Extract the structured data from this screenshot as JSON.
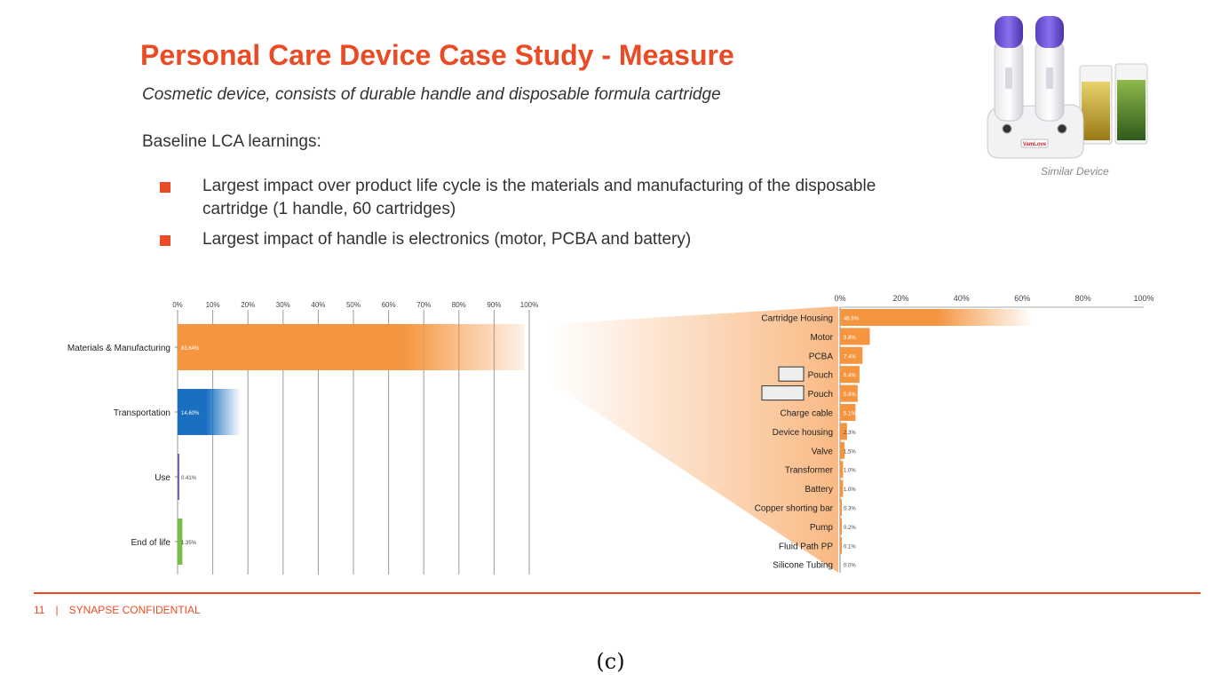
{
  "slide": {
    "title": "Personal Care Device Case Study - Measure",
    "subtitle": "Cosmetic device, consists of durable handle and disposable formula cartridge",
    "intro": "Baseline LCA learnings:",
    "bullets": [
      "Largest impact over product life cycle is the materials and manufacturing of the disposable cartridge (1 handle, 60 cartridges)",
      "Largest impact of handle is electronics (motor, PCBA and battery)"
    ],
    "image_caption": "Similar Device",
    "product_brand": "VamLove",
    "accent_color": "#ea4b24"
  },
  "chart_data": [
    {
      "type": "bar",
      "orientation": "horizontal",
      "categories": [
        "Materials & Manufacturing",
        "Transportation",
        "Use",
        "End of life"
      ],
      "values": [
        83.64,
        14.6,
        0.41,
        1.35
      ],
      "data_labels": [
        "83.64%",
        "14.60%",
        "0.41%",
        "1.35%"
      ],
      "colors": [
        "#f5953f",
        "#1a6fc0",
        "#6d68b5",
        "#76c043"
      ],
      "xlim": [
        0,
        100
      ],
      "x_ticks": [
        "0%",
        "10%",
        "20%",
        "30%",
        "40%",
        "50%",
        "60%",
        "70%",
        "80%",
        "90%",
        "100%"
      ],
      "grid": true
    },
    {
      "type": "bar",
      "orientation": "horizontal",
      "categories": [
        "Cartridge Housing",
        "Motor",
        "PCBA",
        "Pouch",
        "Pouch",
        "Charge cable",
        "Device housing",
        "Valve",
        "Transformer",
        "Battery",
        "Copper shorting bar",
        "Pump",
        "Fluid Path PP",
        "Silicone Tubing"
      ],
      "values": [
        48.5,
        9.8,
        7.4,
        6.4,
        5.8,
        5.1,
        2.3,
        1.5,
        1.0,
        1.0,
        0.3,
        0.2,
        0.1,
        0.0
      ],
      "data_labels": [
        "48.5%",
        "9.8%",
        "7.4%",
        "6.4%",
        "5.8%",
        "5.1%",
        "2.3%",
        "1.5%",
        "1.0%",
        "1.0%",
        "0.3%",
        "0.2%",
        "0.1%",
        "0.0%"
      ],
      "color": "#f5953f",
      "xlim": [
        0,
        100
      ],
      "x_ticks": [
        "0%",
        "20%",
        "40%",
        "60%",
        "80%",
        "100%"
      ],
      "grid": false
    }
  ],
  "footer": {
    "page_number": "11",
    "separator": "|",
    "confidential": "SYNAPSE CONFIDENTIAL"
  },
  "figure_label": "(c)"
}
